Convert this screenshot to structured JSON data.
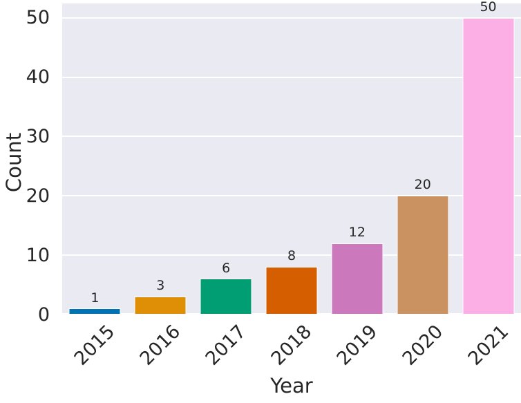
{
  "figure": {
    "background": "#ffffff",
    "plot_background": "#eaeaf2",
    "grid_color": "#ffffff",
    "text_color": "#262626"
  },
  "chart_data": {
    "type": "bar",
    "title": "",
    "xlabel": "Year",
    "ylabel": "Count",
    "categories": [
      "2015",
      "2016",
      "2017",
      "2018",
      "2019",
      "2020",
      "2021"
    ],
    "values": [
      1,
      3,
      6,
      8,
      12,
      20,
      50
    ],
    "bar_labels": [
      "1",
      "3",
      "6",
      "8",
      "12",
      "20",
      "50"
    ],
    "bar_colors": [
      "#0173b2",
      "#de8f05",
      "#029e73",
      "#d55e00",
      "#cc78bc",
      "#ca9161",
      "#fbafe4"
    ],
    "bar_edge_color": "#ffffff",
    "yticks": [
      0,
      10,
      20,
      30,
      40,
      50
    ],
    "ylim": [
      0,
      52.4
    ],
    "grid": "horizontal",
    "legend": "none",
    "xtick_rotation": 45
  }
}
